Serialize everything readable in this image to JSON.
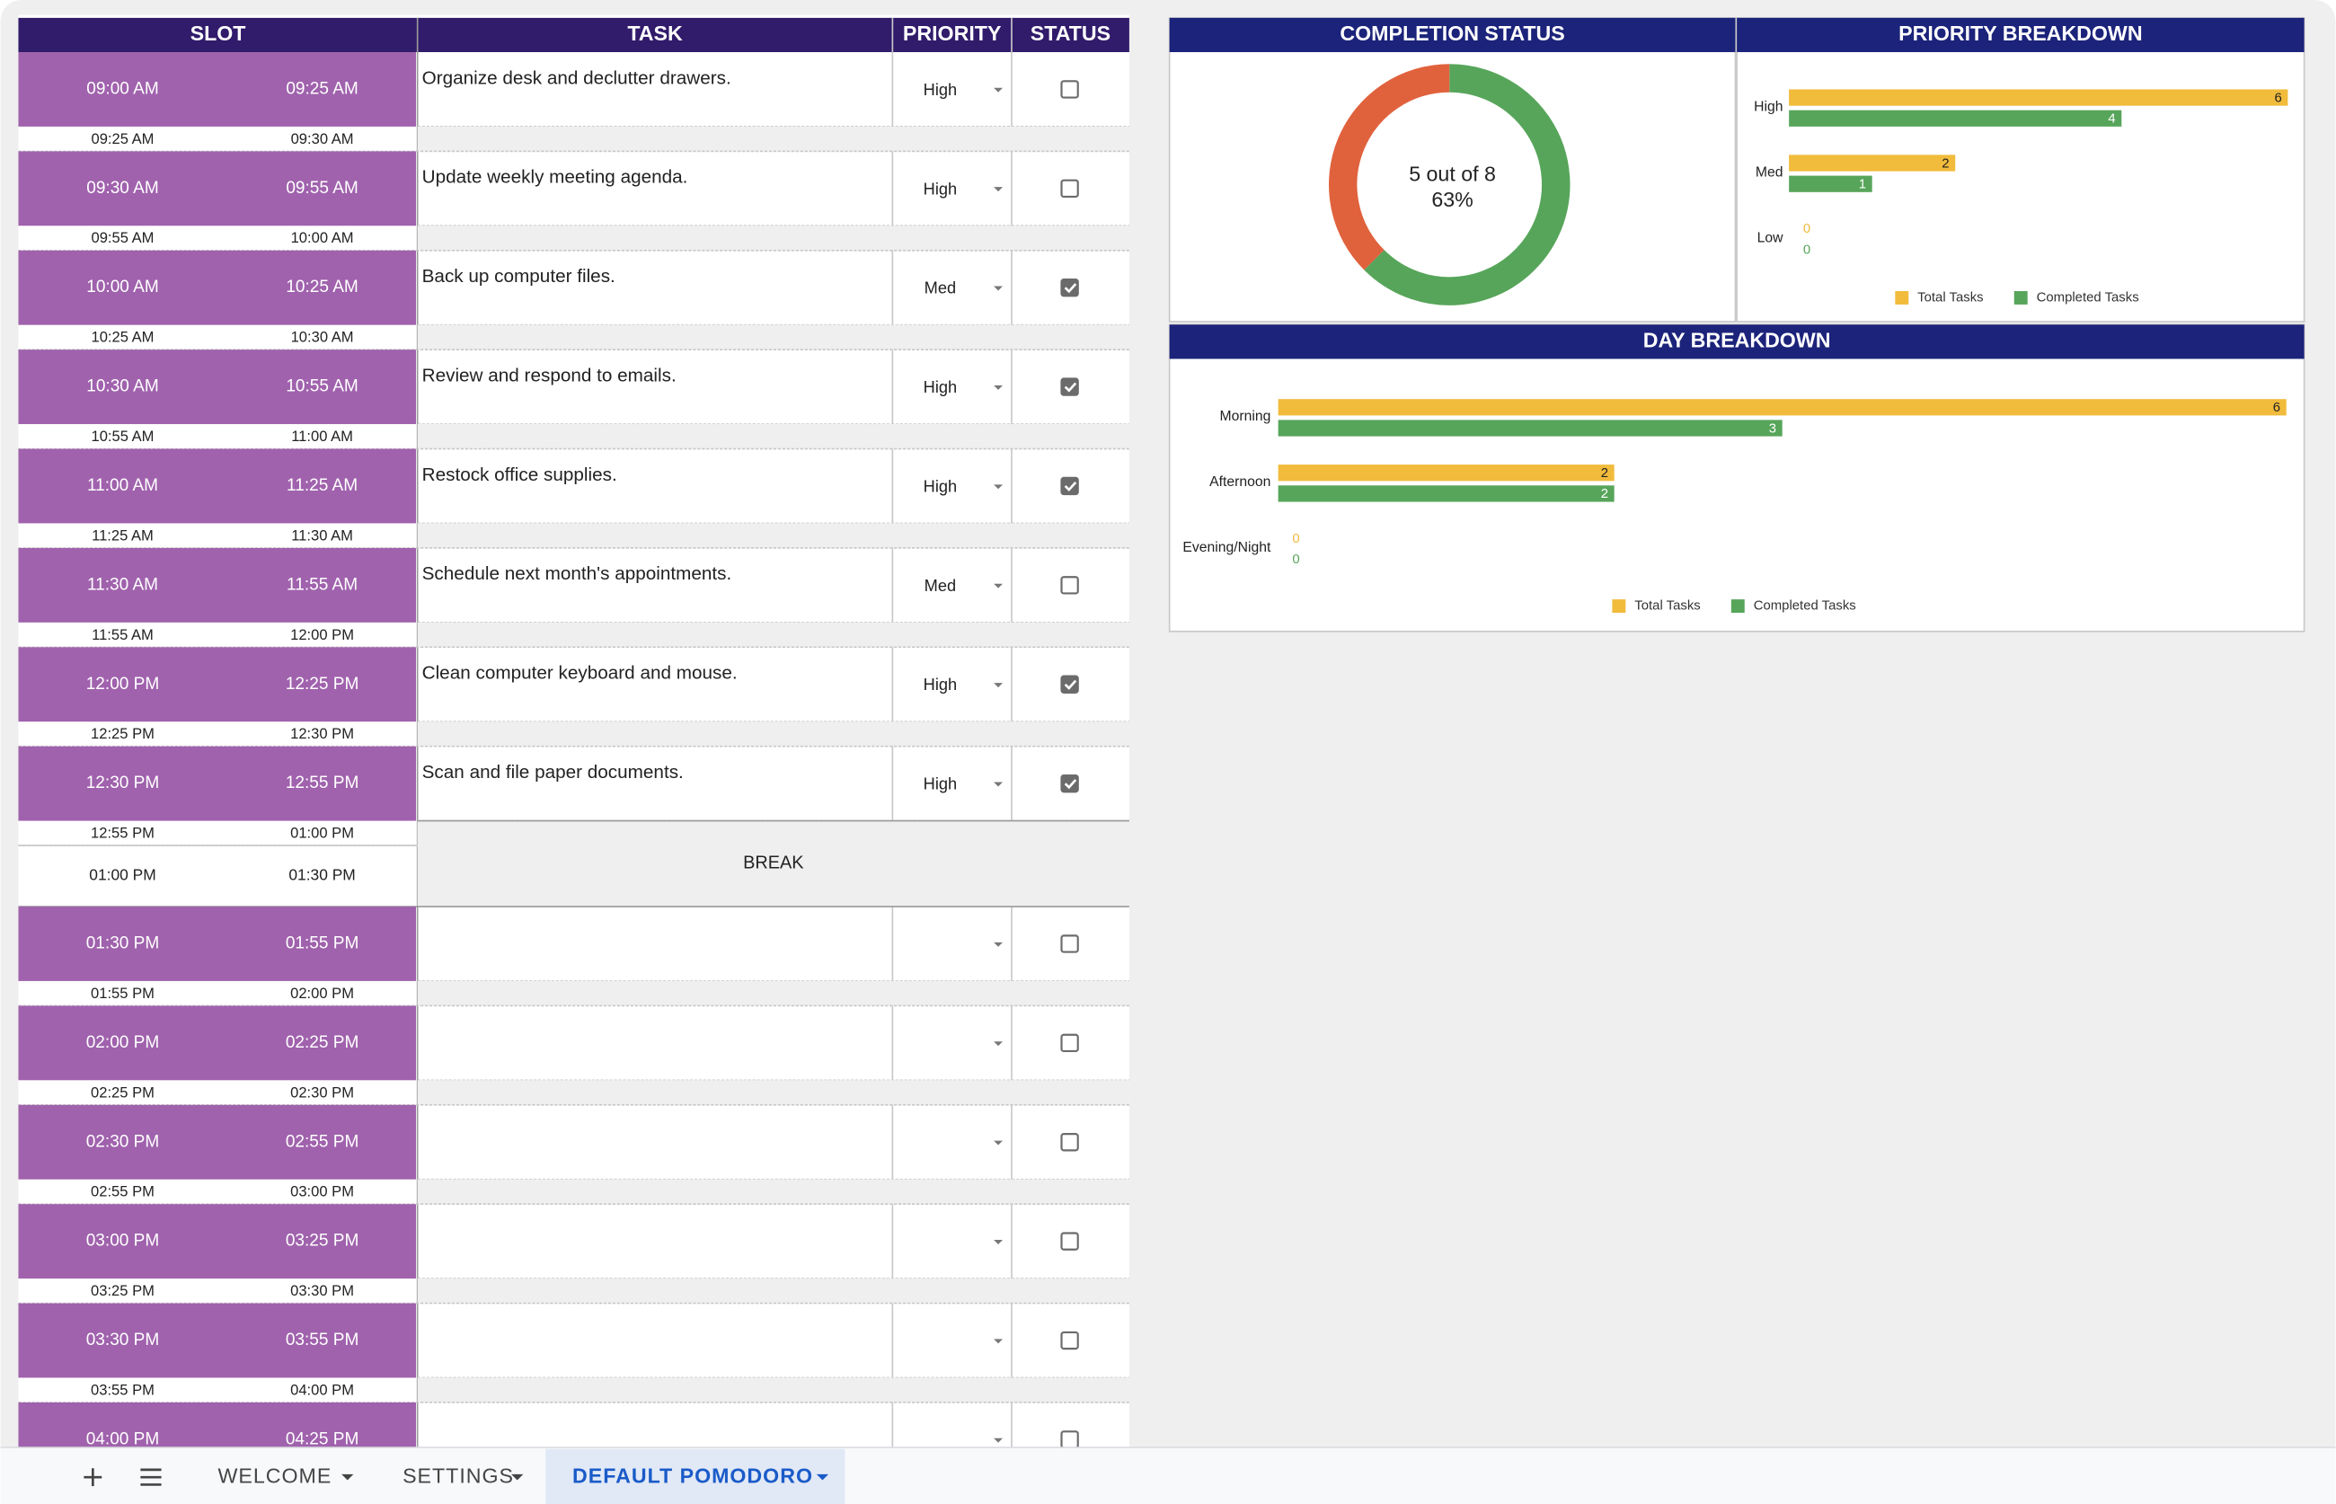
{
  "table": {
    "headers": [
      "SLOT",
      "TASK",
      "PRIORITY",
      "STATUS"
    ],
    "rows": [
      {
        "start": "09:00 AM",
        "end": "09:25 AM",
        "break_start": "09:25 AM",
        "break_end": "09:30 AM",
        "task": "Organize desk and declutter drawers.",
        "priority": "High",
        "done": false
      },
      {
        "start": "09:30 AM",
        "end": "09:55 AM",
        "break_start": "09:55 AM",
        "break_end": "10:00 AM",
        "task": "Update weekly meeting agenda.",
        "priority": "High",
        "done": false
      },
      {
        "start": "10:00 AM",
        "end": "10:25 AM",
        "break_start": "10:25 AM",
        "break_end": "10:30 AM",
        "task": "Back up computer files.",
        "priority": "Med",
        "done": true
      },
      {
        "start": "10:30 AM",
        "end": "10:55 AM",
        "break_start": "10:55 AM",
        "break_end": "11:00 AM",
        "task": "Review and respond to emails.",
        "priority": "High",
        "done": true
      },
      {
        "start": "11:00 AM",
        "end": "11:25 AM",
        "break_start": "11:25 AM",
        "break_end": "11:30 AM",
        "task": "Restock office supplies.",
        "priority": "High",
        "done": true
      },
      {
        "start": "11:30 AM",
        "end": "11:55 AM",
        "break_start": "11:55 AM",
        "break_end": "12:00 PM",
        "task": "Schedule next month's appointments.",
        "priority": "Med",
        "done": false
      },
      {
        "start": "12:00 PM",
        "end": "12:25 PM",
        "break_start": "12:25 PM",
        "break_end": "12:30 PM",
        "task": "Clean computer keyboard and mouse.",
        "priority": "High",
        "done": true
      },
      {
        "start": "12:30 PM",
        "end": "12:55 PM",
        "break_start": "12:55 PM",
        "break_end": "01:00 PM",
        "task": "Scan and file paper documents.",
        "priority": "High",
        "done": true
      },
      {
        "start": "01:00 PM",
        "end": "01:30 PM",
        "label": "BREAK"
      },
      {
        "start": "01:30 PM",
        "end": "01:55 PM",
        "break_start": "01:55 PM",
        "break_end": "02:00 PM",
        "done": false
      },
      {
        "start": "02:00 PM",
        "end": "02:25 PM",
        "break_start": "02:25 PM",
        "break_end": "02:30 PM",
        "done": false
      },
      {
        "start": "02:30 PM",
        "end": "02:55 PM",
        "break_start": "02:55 PM",
        "break_end": "03:00 PM",
        "done": false
      },
      {
        "start": "03:00 PM",
        "end": "03:25 PM",
        "break_start": "03:25 PM",
        "break_end": "03:30 PM",
        "done": false
      },
      {
        "start": "03:30 PM",
        "end": "03:55 PM",
        "break_start": "03:55 PM",
        "break_end": "04:00 PM",
        "done": false
      },
      {
        "start": "04:00 PM",
        "end": "04:25 PM",
        "done": false
      }
    ]
  },
  "chart_data": [
    {
      "type": "donut",
      "title": "COMPLETION STATUS",
      "values": [
        5,
        3
      ],
      "colors": [
        "#57a55a",
        "#e0623d"
      ],
      "center_text": [
        "5 out of 8",
        "63%"
      ]
    },
    {
      "type": "hbar",
      "title": "PRIORITY BREAKDOWN",
      "categories": [
        "High",
        "Med",
        "Low"
      ],
      "series": [
        {
          "name": "Total Tasks",
          "color": "#f1bb3b",
          "values": [
            6,
            2,
            0
          ]
        },
        {
          "name": "Completed Tasks",
          "color": "#57a55a",
          "values": [
            4,
            1,
            0
          ]
        }
      ],
      "xlim": [
        0,
        6
      ],
      "data_labels": true,
      "legend": "bottom"
    },
    {
      "type": "hbar",
      "title": "DAY BREAKDOWN",
      "categories": [
        "Morning",
        "Afternoon",
        "Evening/Night"
      ],
      "series": [
        {
          "name": "Total Tasks",
          "color": "#f1bb3b",
          "values": [
            6,
            2,
            0
          ]
        },
        {
          "name": "Completed Tasks",
          "color": "#57a55a",
          "values": [
            3,
            2,
            0
          ]
        }
      ],
      "xlim": [
        0,
        6
      ],
      "data_labels": true,
      "legend": "bottom"
    }
  ],
  "tabs": [
    "WELCOME",
    "SETTINGS",
    "DEFAULT POMODORO"
  ],
  "active_tab": 2
}
